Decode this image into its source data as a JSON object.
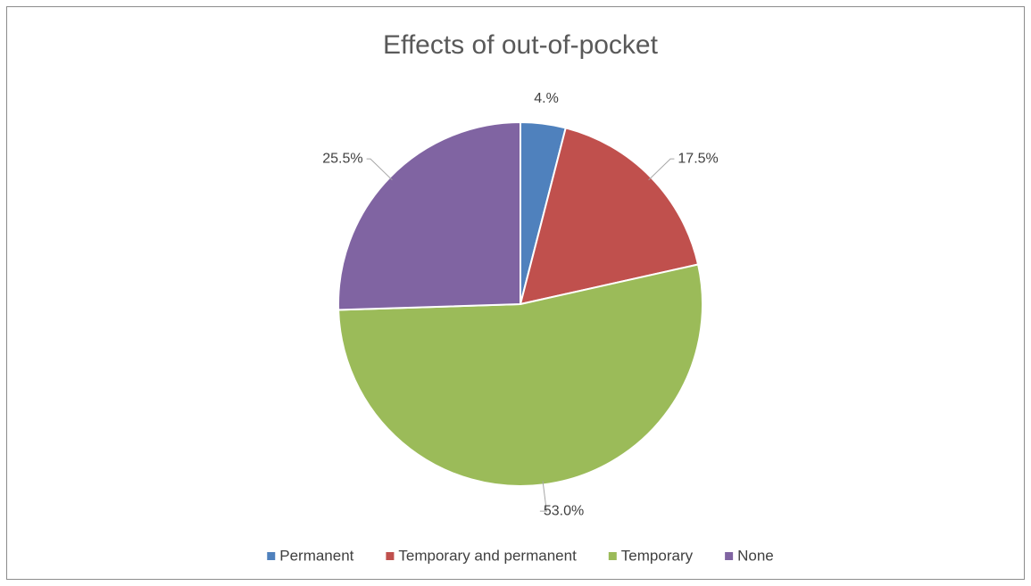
{
  "chart_data": {
    "type": "pie",
    "title": "Effects of out-of-pocket",
    "categories": [
      "Permanent",
      "Temporary and permanent",
      "Temporary",
      "None"
    ],
    "values": [
      4,
      17.5,
      53.0,
      25.5
    ],
    "value_labels": [
      "4.%",
      "17.5%",
      "53.0%",
      "25.5%"
    ],
    "colors": [
      "#4f81bd",
      "#c0504d",
      "#9bbb59",
      "#8064a2"
    ],
    "legend": "bottom"
  }
}
